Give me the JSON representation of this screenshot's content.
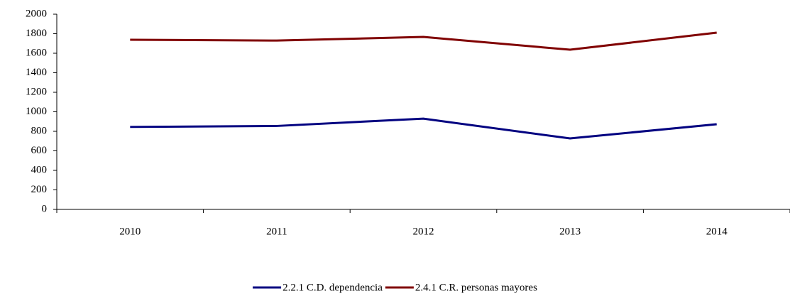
{
  "chart_data": {
    "type": "line",
    "categories": [
      "2010",
      "2011",
      "2012",
      "2013",
      "2014"
    ],
    "series": [
      {
        "name": "2.2.1 C.D. dependencia",
        "color": "#000080",
        "values": [
          845,
          855,
          930,
          727,
          873
        ]
      },
      {
        "name": "2.4.1 C.R. personas mayores",
        "color": "#800000",
        "values": [
          1738,
          1730,
          1767,
          1636,
          1811
        ]
      }
    ],
    "ylim": [
      0,
      2000
    ],
    "yticks": [
      0,
      200,
      400,
      600,
      800,
      1000,
      1200,
      1400,
      1600,
      1800,
      2000
    ],
    "grid": false,
    "legend": "bottom"
  }
}
